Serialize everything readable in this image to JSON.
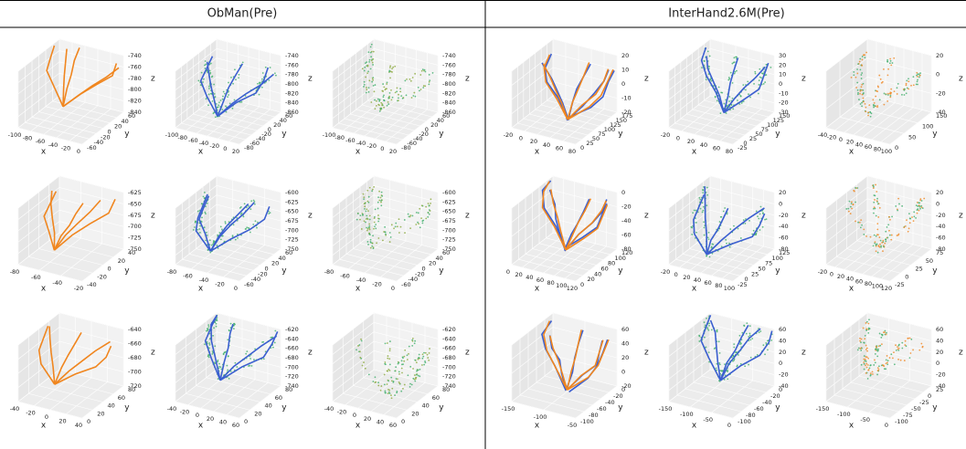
{
  "axis_labels": {
    "x": "x",
    "y": "y",
    "z": "z"
  },
  "sections": [
    {
      "title": "ObMan(Pre)",
      "panels": [
        {
          "zticks": [
            -740,
            -760,
            -780,
            -800,
            -820,
            -840
          ],
          "xticks": [
            -100,
            -80,
            -60,
            -40,
            -20,
            0
          ],
          "yticks": [
            60,
            40,
            20,
            0,
            -20,
            -40,
            -60
          ]
        },
        {
          "zticks": [
            -740,
            -760,
            -780,
            -800,
            -820,
            -840,
            -860
          ],
          "xticks": [
            -100,
            -80,
            -60,
            -40,
            -20,
            0,
            20
          ],
          "yticks": [
            60,
            40,
            20,
            0,
            -20,
            -40,
            -60,
            -80
          ]
        },
        {
          "zticks": [
            -740,
            -760,
            -780,
            -800,
            -820,
            -840,
            -860
          ],
          "xticks": [
            -100,
            -80,
            -60,
            -40,
            -20,
            0,
            20
          ],
          "yticks": [
            60,
            40,
            20,
            0,
            -20,
            -40,
            -60,
            -80
          ]
        },
        {
          "zticks": [
            -625,
            -650,
            -675,
            -700,
            -725,
            -750
          ],
          "xticks": [
            -80,
            -60,
            -40,
            -20
          ],
          "yticks": [
            40,
            20,
            0,
            -20,
            -40
          ]
        },
        {
          "zticks": [
            -600,
            -625,
            -650,
            -675,
            -700,
            -725,
            -750
          ],
          "xticks": [
            -80,
            -60,
            -40,
            -20,
            0
          ],
          "yticks": [
            60,
            40,
            20,
            0,
            -20,
            -40,
            -60
          ]
        },
        {
          "zticks": [
            -600,
            -625,
            -650,
            -675,
            -700,
            -725,
            -750
          ],
          "xticks": [
            -80,
            -60,
            -40,
            -20,
            0
          ],
          "yticks": [
            60,
            40,
            20,
            0,
            -20,
            -40,
            -60
          ]
        },
        {
          "zticks": [
            -640,
            -660,
            -680,
            -700,
            -720
          ],
          "xticks": [
            -40,
            -20,
            0,
            20,
            40
          ],
          "yticks": [
            80,
            60,
            40,
            20,
            0
          ]
        },
        {
          "zticks": [
            -620,
            -640,
            -660,
            -680,
            -700,
            -720,
            -740
          ],
          "xticks": [
            -40,
            -20,
            0,
            20,
            40,
            60
          ],
          "yticks": [
            80,
            60,
            40,
            20,
            0
          ]
        },
        {
          "zticks": [
            -620,
            -640,
            -660,
            -680,
            -700,
            -720,
            -740
          ],
          "xticks": [
            -40,
            -20,
            0,
            20,
            40,
            60
          ],
          "yticks": [
            80,
            60,
            40,
            20,
            0
          ]
        }
      ]
    },
    {
      "title": "InterHand2.6M(Pre)",
      "panels": [
        {
          "zticks": [
            20,
            10,
            0,
            -10,
            -20
          ],
          "xticks": [
            -20,
            0,
            20,
            40,
            60,
            80
          ],
          "yticks": [
            175,
            150,
            125,
            100,
            75,
            50,
            25,
            0
          ]
        },
        {
          "zticks": [
            30,
            20,
            10,
            0,
            -10,
            -20,
            -30
          ],
          "xticks": [
            -20,
            0,
            20,
            40,
            60,
            80
          ],
          "yticks": [
            150,
            125,
            100,
            75,
            50,
            25,
            0,
            -25
          ]
        },
        {
          "zticks": [
            20,
            0,
            -20,
            -40
          ],
          "xticks": [
            -40,
            -20,
            0,
            20,
            40,
            60,
            80,
            100
          ],
          "yticks": [
            150,
            100,
            50,
            0
          ]
        },
        {
          "zticks": [
            0,
            -20,
            -40,
            -60,
            -80
          ],
          "xticks": [
            0,
            20,
            40,
            60,
            80,
            100,
            120
          ],
          "yticks": [
            120,
            100,
            80,
            60,
            40,
            20,
            0
          ]
        },
        {
          "zticks": [
            20,
            0,
            -20,
            -40,
            -60,
            -80
          ],
          "xticks": [
            -20,
            0,
            20,
            40,
            60,
            80,
            100
          ],
          "yticks": [
            125,
            100,
            75,
            50,
            25,
            0,
            -25
          ]
        },
        {
          "zticks": [
            20,
            0,
            -20,
            -40,
            -60,
            -80
          ],
          "xticks": [
            -20,
            0,
            20,
            40,
            60,
            80,
            100,
            120
          ],
          "yticks": [
            75,
            50,
            25,
            0,
            -25
          ]
        },
        {
          "zticks": [
            60,
            40,
            20,
            0,
            -20
          ],
          "xticks": [
            -150,
            -100,
            -50
          ],
          "yticks": [
            0,
            -20,
            -40,
            -60,
            -80,
            -100
          ]
        },
        {
          "zticks": [
            60,
            40,
            20,
            0,
            -20,
            -40
          ],
          "xticks": [
            -150,
            -100,
            -50,
            0
          ],
          "yticks": [
            0,
            -20,
            -40,
            -60,
            -80,
            -100
          ]
        },
        {
          "zticks": [
            60,
            40,
            20,
            0,
            -20,
            -40
          ],
          "xticks": [
            -150,
            -100,
            -50,
            0
          ],
          "yticks": [
            25,
            0,
            -25,
            -50,
            -75,
            -100
          ]
        }
      ]
    }
  ]
}
